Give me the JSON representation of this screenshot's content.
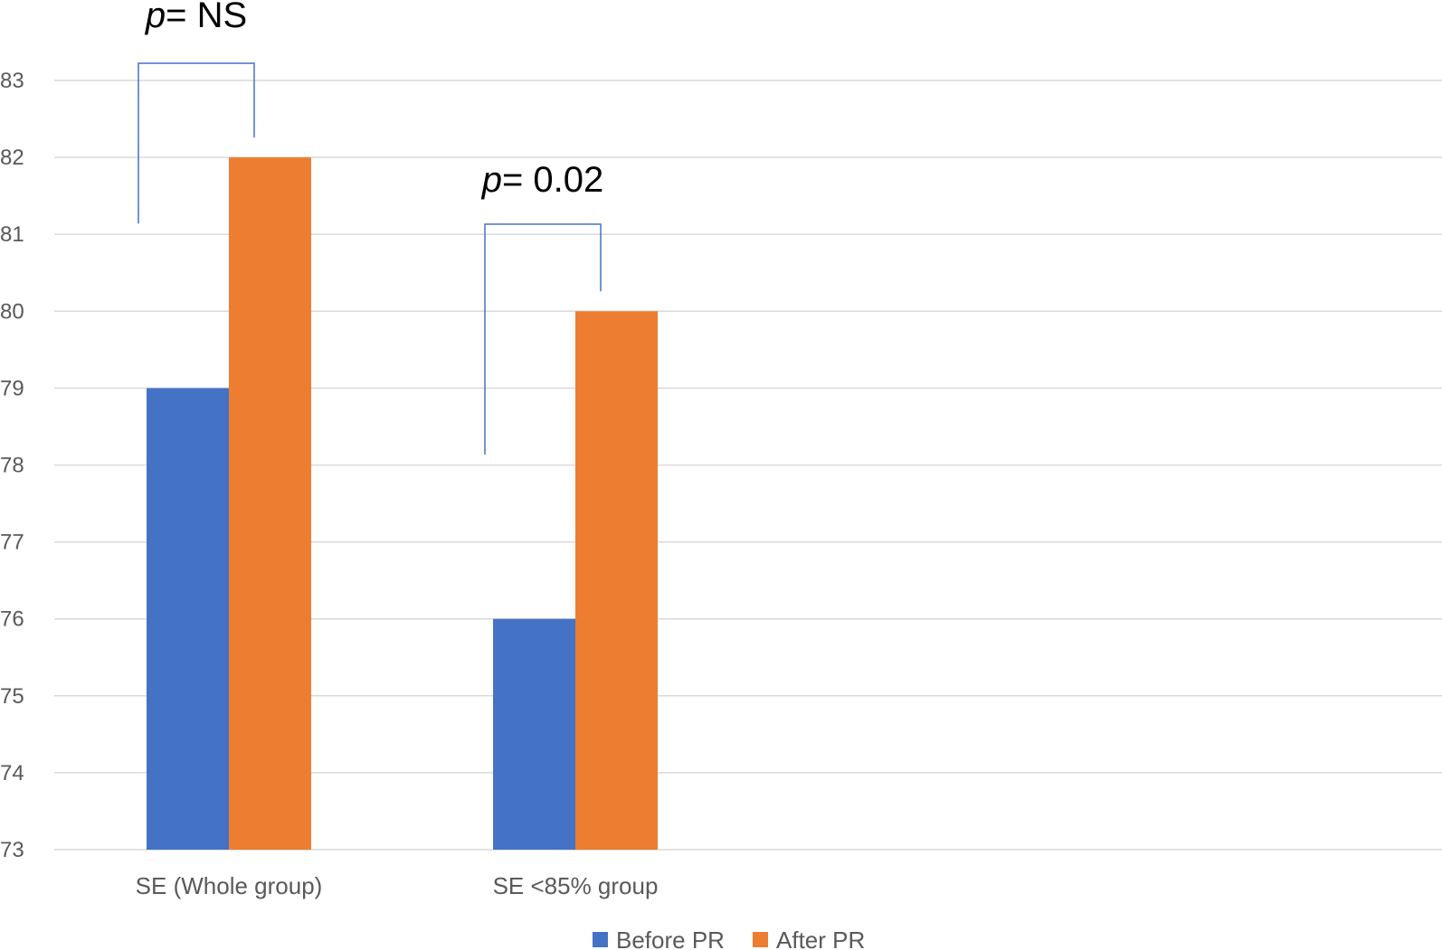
{
  "chart_data": {
    "type": "bar",
    "categories": [
      "SE (Whole group)",
      "SE <85% group"
    ],
    "series": [
      {
        "name": "Before PR",
        "color": "#4472C4",
        "values": [
          79,
          76
        ]
      },
      {
        "name": "After PR",
        "color": "#ED7D31",
        "values": [
          82,
          80
        ]
      }
    ],
    "ylim": [
      73,
      83
    ],
    "yticks": [
      "73",
      "74",
      "75",
      "76",
      "77",
      "78",
      "79",
      "80",
      "81",
      "82",
      "83"
    ],
    "grid": true,
    "legend": "bottom",
    "annotations": [
      {
        "category": 0,
        "p_symbol": "p",
        "text": "= NS"
      },
      {
        "category": 1,
        "p_symbol": "p",
        "text": "= 0.02"
      }
    ],
    "bracket_color": "#4472C4",
    "grid_color": "#D9D9D9"
  }
}
